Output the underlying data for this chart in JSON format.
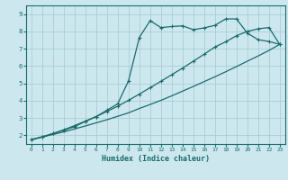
{
  "xlabel": "Humidex (Indice chaleur)",
  "bg_color": "#cce8ee",
  "grid_color": "#aacdd6",
  "line_color": "#1a6b6b",
  "xlim": [
    -0.5,
    23.5
  ],
  "ylim": [
    1.5,
    9.5
  ],
  "xticks": [
    0,
    1,
    2,
    3,
    4,
    5,
    6,
    7,
    8,
    9,
    10,
    11,
    12,
    13,
    14,
    15,
    16,
    17,
    18,
    19,
    20,
    21,
    22,
    23
  ],
  "yticks": [
    2,
    3,
    4,
    5,
    6,
    7,
    8,
    9
  ],
  "line1_x": [
    0,
    1,
    2,
    3,
    4,
    5,
    6,
    7,
    8,
    9,
    10,
    11,
    12,
    13,
    14,
    15,
    16,
    17,
    18,
    19,
    20,
    21,
    22,
    23
  ],
  "line1_y": [
    1.75,
    1.9,
    2.05,
    2.2,
    2.37,
    2.54,
    2.72,
    2.9,
    3.1,
    3.3,
    3.55,
    3.78,
    4.02,
    4.28,
    4.55,
    4.82,
    5.1,
    5.38,
    5.67,
    5.97,
    6.28,
    6.58,
    6.9,
    7.25
  ],
  "line2_x": [
    0,
    1,
    2,
    3,
    4,
    5,
    6,
    7,
    8,
    9,
    10,
    11,
    12,
    13,
    14,
    15,
    16,
    17,
    18,
    19,
    20,
    21,
    22,
    23
  ],
  "line2_y": [
    1.75,
    1.92,
    2.1,
    2.32,
    2.56,
    2.82,
    3.08,
    3.38,
    3.68,
    4.02,
    4.38,
    4.75,
    5.12,
    5.5,
    5.88,
    6.28,
    6.68,
    7.1,
    7.4,
    7.75,
    8.0,
    8.15,
    8.22,
    7.25
  ],
  "line3_x": [
    0,
    1,
    2,
    3,
    4,
    5,
    6,
    7,
    8,
    9,
    10,
    11,
    12,
    13,
    14,
    15,
    16,
    17,
    18,
    19,
    20,
    21,
    22,
    23
  ],
  "line3_y": [
    1.75,
    1.9,
    2.1,
    2.3,
    2.5,
    2.8,
    3.08,
    3.45,
    3.82,
    5.15,
    7.65,
    8.62,
    8.22,
    8.28,
    8.32,
    8.1,
    8.2,
    8.35,
    8.72,
    8.72,
    7.9,
    7.52,
    7.42,
    7.25
  ]
}
